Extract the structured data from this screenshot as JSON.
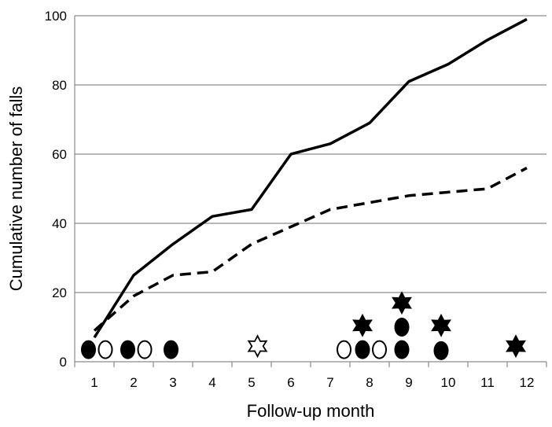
{
  "chart_data": {
    "type": "line",
    "title": "",
    "xlabel": "Follow-up month",
    "ylabel": "Cumulative number of falls",
    "xlim": [
      0.5,
      12.5
    ],
    "ylim": [
      0,
      100
    ],
    "x_ticks": [
      1,
      2,
      3,
      4,
      5,
      6,
      7,
      8,
      9,
      10,
      11,
      12
    ],
    "y_ticks": [
      0,
      20,
      40,
      60,
      80,
      100
    ],
    "grid": "horizontal",
    "legend": "none",
    "series": [
      {
        "style": "solid",
        "color": "#000000",
        "x": [
          1,
          2,
          3,
          4,
          5,
          6,
          7,
          8,
          9,
          10,
          11,
          12
        ],
        "y": [
          7,
          25,
          34,
          42,
          44,
          60,
          63,
          69,
          81,
          86,
          93,
          99
        ]
      },
      {
        "style": "dashed",
        "color": "#000000",
        "x": [
          1,
          2,
          3,
          4,
          5,
          6,
          7,
          8,
          9,
          10,
          11,
          12
        ],
        "y": [
          9,
          19,
          25,
          26,
          34,
          39,
          44,
          46,
          48,
          49,
          50,
          56
        ]
      }
    ],
    "event_markers": [
      {
        "shape": "ellipse",
        "fill": "filled",
        "x": 0.85,
        "y": 3.5
      },
      {
        "shape": "ellipse",
        "fill": "open",
        "x": 1.28,
        "y": 3.5
      },
      {
        "shape": "ellipse",
        "fill": "filled",
        "x": 1.85,
        "y": 3.5
      },
      {
        "shape": "ellipse",
        "fill": "open",
        "x": 2.28,
        "y": 3.5
      },
      {
        "shape": "ellipse",
        "fill": "filled",
        "x": 2.95,
        "y": 3.5
      },
      {
        "shape": "star",
        "fill": "open",
        "x": 5.15,
        "y": 4.5
      },
      {
        "shape": "ellipse",
        "fill": "open",
        "x": 7.35,
        "y": 3.5
      },
      {
        "shape": "ellipse",
        "fill": "filled",
        "x": 7.82,
        "y": 3.5
      },
      {
        "shape": "ellipse",
        "fill": "open",
        "x": 8.25,
        "y": 3.5
      },
      {
        "shape": "star",
        "fill": "filled",
        "x": 7.82,
        "y": 10.5
      },
      {
        "shape": "ellipse",
        "fill": "filled",
        "x": 8.82,
        "y": 3.5
      },
      {
        "shape": "ellipse",
        "fill": "filled",
        "x": 8.82,
        "y": 10.0
      },
      {
        "shape": "star",
        "fill": "filled",
        "x": 8.82,
        "y": 17.0
      },
      {
        "shape": "ellipse",
        "fill": "filled",
        "x": 9.82,
        "y": 3.2
      },
      {
        "shape": "star",
        "fill": "filled",
        "x": 9.82,
        "y": 10.5
      },
      {
        "shape": "star",
        "fill": "filled",
        "x": 11.72,
        "y": 4.5
      }
    ]
  }
}
